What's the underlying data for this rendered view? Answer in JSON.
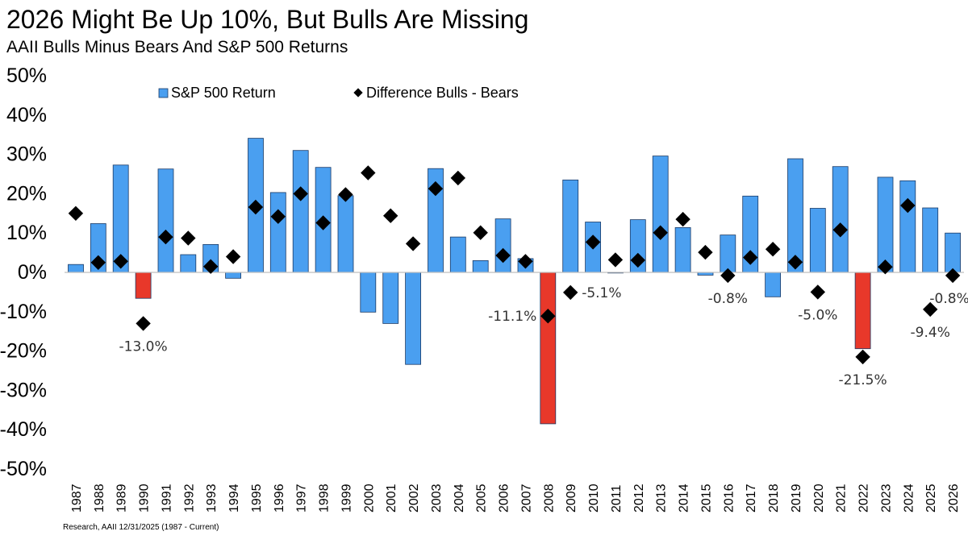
{
  "title": "2026 Might Be Up 10%, But Bulls Are Missing",
  "subtitle": "AAII Bulls Minus Bears And S&P 500 Returns",
  "footer": "Research, AAII 12/31/2025 (1987 - Current)",
  "colors": {
    "bar": "#4a9ff0",
    "bar_negative_highlight": "#e8382a",
    "diamond": "#000000"
  },
  "chart_data": {
    "type": "bar",
    "title": "2026 Might Be Up 10%, But Bulls Are Missing",
    "subtitle": "AAII Bulls Minus Bears And S&P 500 Returns",
    "categories": [
      "1987",
      "1988",
      "1989",
      "1990",
      "1991",
      "1992",
      "1993",
      "1994",
      "1995",
      "1996",
      "1997",
      "1998",
      "1999",
      "2000",
      "2001",
      "2002",
      "2003",
      "2004",
      "2005",
      "2006",
      "2007",
      "2008",
      "2009",
      "2010",
      "2011",
      "2012",
      "2013",
      "2014",
      "2015",
      "2016",
      "2017",
      "2018",
      "2019",
      "2020",
      "2021",
      "2022",
      "2023",
      "2024",
      "2025",
      "2026"
    ],
    "ylim": [
      -50,
      50
    ],
    "yticks": [
      "50%",
      "40%",
      "30%",
      "20%",
      "10%",
      "0%",
      "-10%",
      "-20%",
      "-30%",
      "-40%",
      "-50%"
    ],
    "grid": false,
    "legend_position": "top",
    "series": [
      {
        "name": "S&P 500 Return",
        "type": "bar",
        "values": [
          2.0,
          12.4,
          27.3,
          -6.6,
          26.3,
          4.5,
          7.1,
          -1.5,
          34.1,
          20.3,
          31.0,
          26.7,
          19.5,
          -10.1,
          -13.0,
          -23.4,
          26.4,
          9.0,
          3.0,
          13.6,
          3.5,
          -38.5,
          23.5,
          12.8,
          0.0,
          13.4,
          29.6,
          11.4,
          -0.7,
          9.5,
          19.4,
          -6.2,
          28.9,
          16.3,
          26.9,
          -19.4,
          24.2,
          23.3,
          16.4,
          10.0
        ],
        "highlight_red": [
          "1990",
          "2008",
          "2022"
        ]
      },
      {
        "name": "Difference Bulls - Bears",
        "type": "scatter",
        "marker": "diamond",
        "values": [
          15.0,
          2.5,
          2.8,
          -13.0,
          9.0,
          8.7,
          1.5,
          4.0,
          16.6,
          14.2,
          20.0,
          12.6,
          19.8,
          25.3,
          14.4,
          7.3,
          21.3,
          24.0,
          10.1,
          4.3,
          2.8,
          -11.1,
          -5.1,
          7.7,
          3.2,
          3.1,
          10.1,
          13.5,
          5.1,
          -0.8,
          3.8,
          5.9,
          2.6,
          -5.0,
          10.8,
          -21.5,
          1.4,
          17.0,
          -9.4,
          -0.8
        ]
      }
    ],
    "annotations": [
      {
        "year": "1990",
        "text": "-13.0%",
        "pos": "below"
      },
      {
        "year": "2008",
        "text": "-11.1%",
        "pos": "left"
      },
      {
        "year": "2009",
        "text": "-5.1%",
        "pos": "right"
      },
      {
        "year": "2016",
        "text": "-0.8%",
        "pos": "below"
      },
      {
        "year": "2020",
        "text": "-5.0%",
        "pos": "below"
      },
      {
        "year": "2022",
        "text": "-21.5%",
        "pos": "below"
      },
      {
        "year": "2025",
        "text": "-9.4%",
        "pos": "below"
      },
      {
        "year": "2026",
        "text": "-0.8%",
        "pos": "below"
      }
    ]
  }
}
